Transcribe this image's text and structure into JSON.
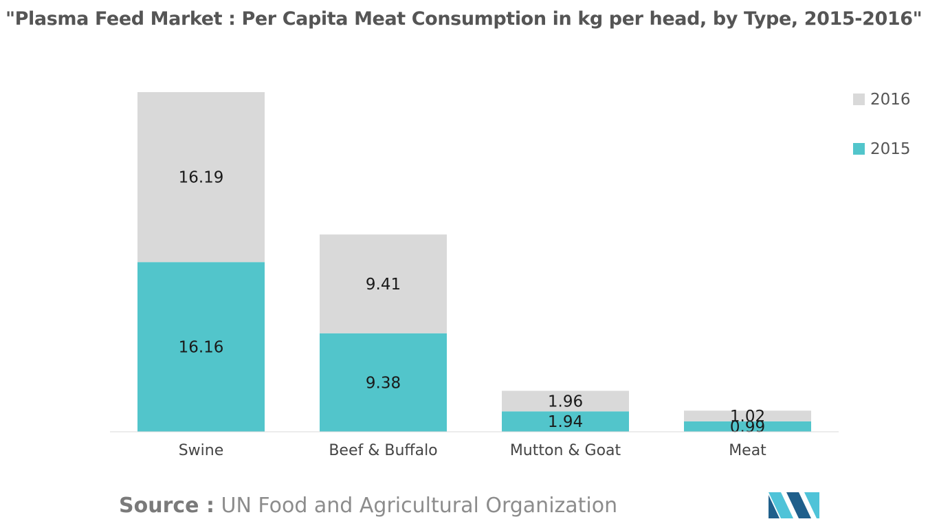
{
  "title": "\"Plasma Feed Market : Per Capita Meat Consumption in kg per head, by Type, 2015-2016\"",
  "source": {
    "label": "Source :",
    "text": "UN Food and Agricultural Organization"
  },
  "logo": {
    "icon": "mordor-logo-icon",
    "colors": [
      "#1f5f8b",
      "#4fc3d8"
    ]
  },
  "chart_data": {
    "type": "bar",
    "stacked": true,
    "title": "Plasma Feed Market : Per Capita Meat Consumption in kg per head, by Type, 2015-2016",
    "xlabel": "",
    "ylabel": "",
    "categories": [
      "Swine",
      "Beef & Buffalo",
      "Mutton & Goat",
      "Meat"
    ],
    "series": [
      {
        "name": "2015",
        "color": "#52c5cb",
        "values": [
          16.16,
          9.38,
          1.94,
          0.99
        ]
      },
      {
        "name": "2016",
        "color": "#d9d9d9",
        "values": [
          16.19,
          9.41,
          1.96,
          1.02
        ]
      }
    ],
    "legend": {
      "position": "top-right",
      "order": [
        "2016",
        "2015"
      ]
    },
    "grid": false,
    "ylim": [
      0,
      32.35
    ]
  }
}
